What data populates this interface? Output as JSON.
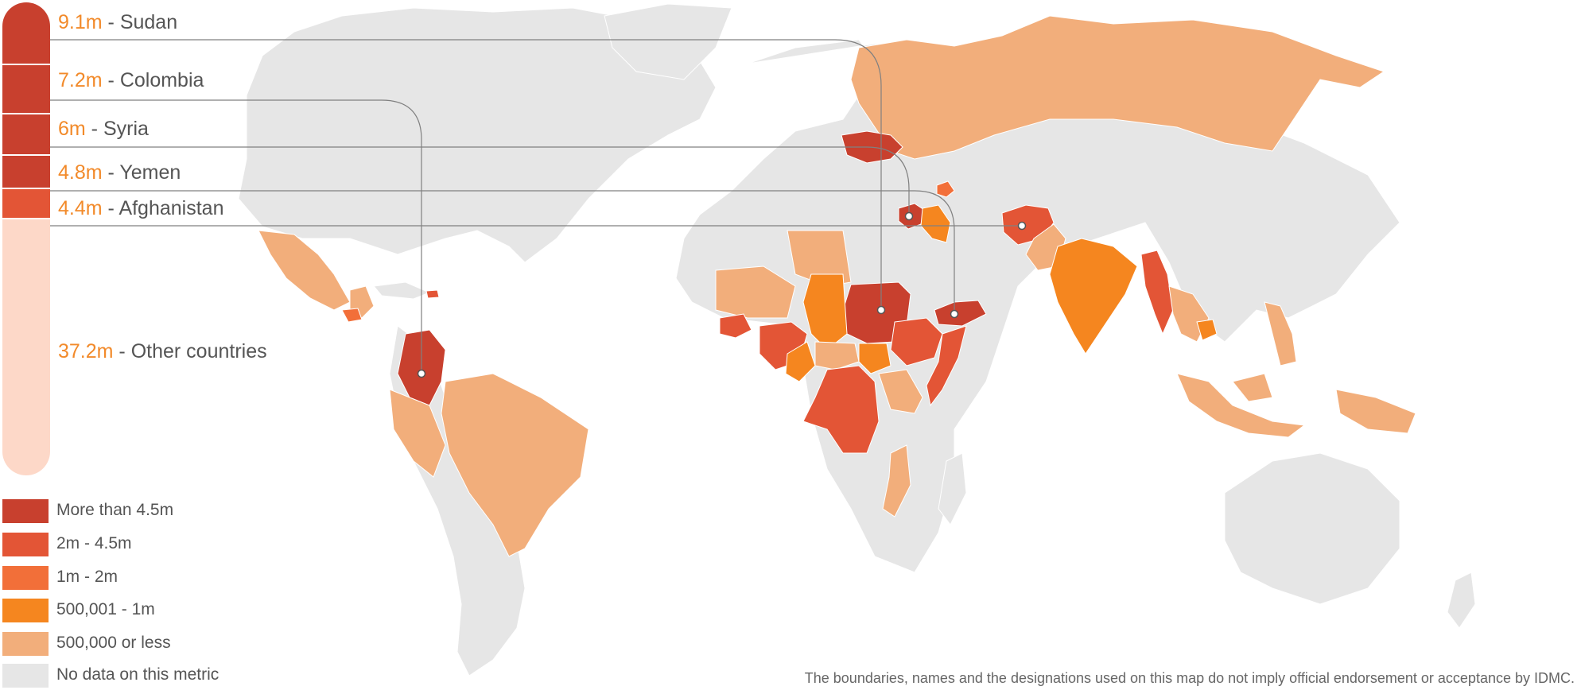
{
  "stacked_bar": {
    "items": [
      {
        "value": "9.1m",
        "label": "Sudan",
        "number": 9.1,
        "color": "#c8402e"
      },
      {
        "value": "7.2m",
        "label": "Colombia",
        "number": 7.2,
        "color": "#c8402e"
      },
      {
        "value": "6m",
        "label": "Syria",
        "number": 6.0,
        "color": "#c8402e"
      },
      {
        "value": "4.8m",
        "label": "Yemen",
        "number": 4.8,
        "color": "#c8402e"
      },
      {
        "value": "4.4m",
        "label": "Afghanistan",
        "number": 4.4,
        "color": "#e35536"
      },
      {
        "value": "37.2m",
        "label": "Other countries",
        "number": 37.2,
        "color": "#fdd8c8"
      }
    ]
  },
  "legend": {
    "items": [
      {
        "label": "More than 4.5m",
        "color": "#c8402e"
      },
      {
        "label": "2m - 4.5m",
        "color": "#e35536"
      },
      {
        "label": "1m - 2m",
        "color": "#f26f39"
      },
      {
        "label": "500,001 - 1m",
        "color": "#f5861f"
      },
      {
        "label": "500,000 or less",
        "color": "#f2ae7b"
      },
      {
        "label": "No data on this metric",
        "color": "#e6e6e6"
      }
    ]
  },
  "disclaimer": "The boundaries, names and the designations used on this map do not imply official endorsement or acceptance by IDMC.",
  "colors": {
    "no_data": "#e6e6e6",
    "value_text": "#f28a2a",
    "leader_line": "#808080"
  }
}
